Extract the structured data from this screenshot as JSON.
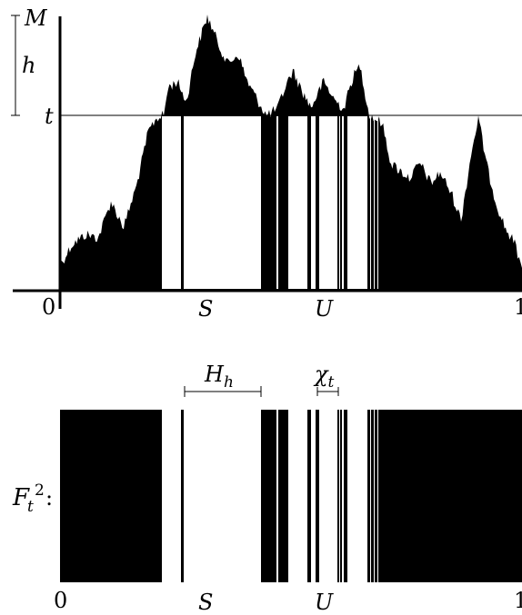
{
  "labels": {
    "M": "M",
    "h": "h",
    "t": "t",
    "zero_top": "0",
    "S_top": "S",
    "U_top": "U",
    "one_top": "1",
    "H": "H",
    "H_sub": "h",
    "chi": "χ",
    "chi_sub": "t",
    "F": "F",
    "F_sub": "t",
    "F_sup": "2",
    "F_colon": ":",
    "zero_bottom": "0",
    "S_bottom": "S",
    "U_bottom": "U",
    "one_bottom": "1"
  },
  "colors": {
    "ink": "#000000",
    "background": "#ffffff"
  }
}
